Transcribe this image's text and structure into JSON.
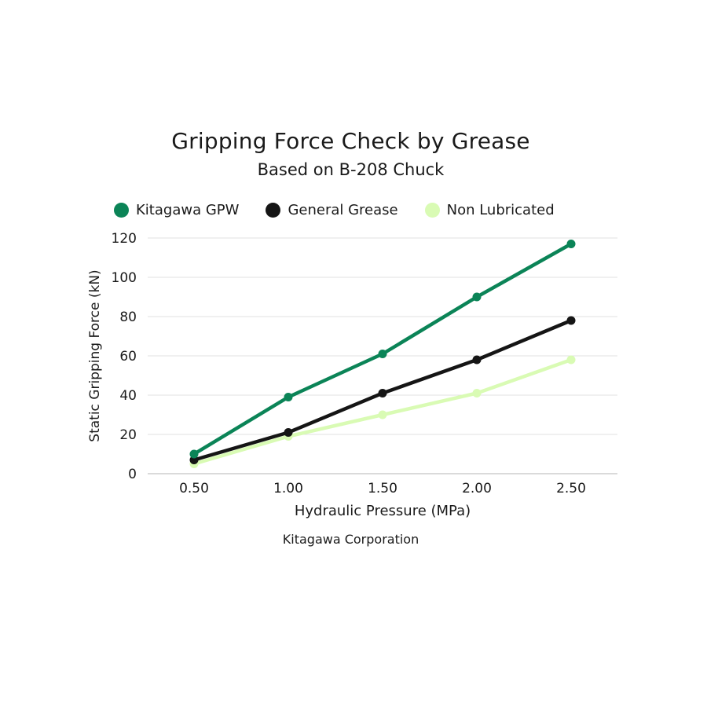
{
  "chart_data": {
    "type": "line",
    "title": "Gripping Force Check by Grease",
    "subtitle": "Based on B-208 Chuck",
    "xlabel": "Hydraulic Pressure (MPa)",
    "ylabel": "Static Gripping Force (kN)",
    "categories": [
      "0.50",
      "1.00",
      "1.50",
      "2.00",
      "2.50"
    ],
    "ylim": [
      0,
      120
    ],
    "yticks": [
      "0",
      "20",
      "40",
      "60",
      "80",
      "100",
      "120"
    ],
    "grid": true,
    "legend_position": "top",
    "series": [
      {
        "name": "Kitagawa GPW",
        "color": "#0b8457",
        "values": [
          10,
          39,
          61,
          90,
          117
        ]
      },
      {
        "name": "General Grease",
        "color": "#151515",
        "values": [
          7,
          21,
          41,
          58,
          78
        ]
      },
      {
        "name": "Non Lubricated",
        "color": "#d9fbb4",
        "values": [
          5,
          19,
          30,
          41,
          58
        ]
      }
    ],
    "source": "Kitagawa Corporation"
  }
}
